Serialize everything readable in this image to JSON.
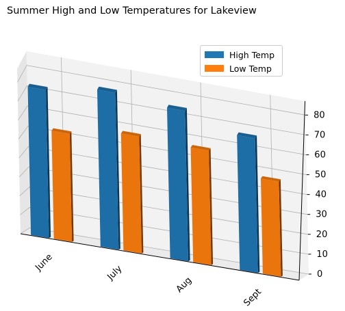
{
  "title": "Summer High and Low Temperatures for Lakeview",
  "chart_data": {
    "type": "bar",
    "title": "Summer High and Low Temperatures for Lakeview",
    "categories": [
      "June",
      "July",
      "Aug",
      "Sept"
    ],
    "series": [
      {
        "name": "High Temp",
        "values": [
          78,
          83,
          80,
          72
        ],
        "color": "#1f77b4"
      },
      {
        "name": "Low Temp",
        "values": [
          57,
          62,
          61,
          51
        ],
        "color": "#ff7f0e"
      }
    ],
    "xlabel": "",
    "ylabel": "",
    "ylim": [
      0,
      87
    ],
    "yticks": [
      0,
      10,
      20,
      30,
      40,
      50,
      60,
      70,
      80
    ],
    "grid": true,
    "legend_position": "upper-right",
    "projection": "3d"
  }
}
